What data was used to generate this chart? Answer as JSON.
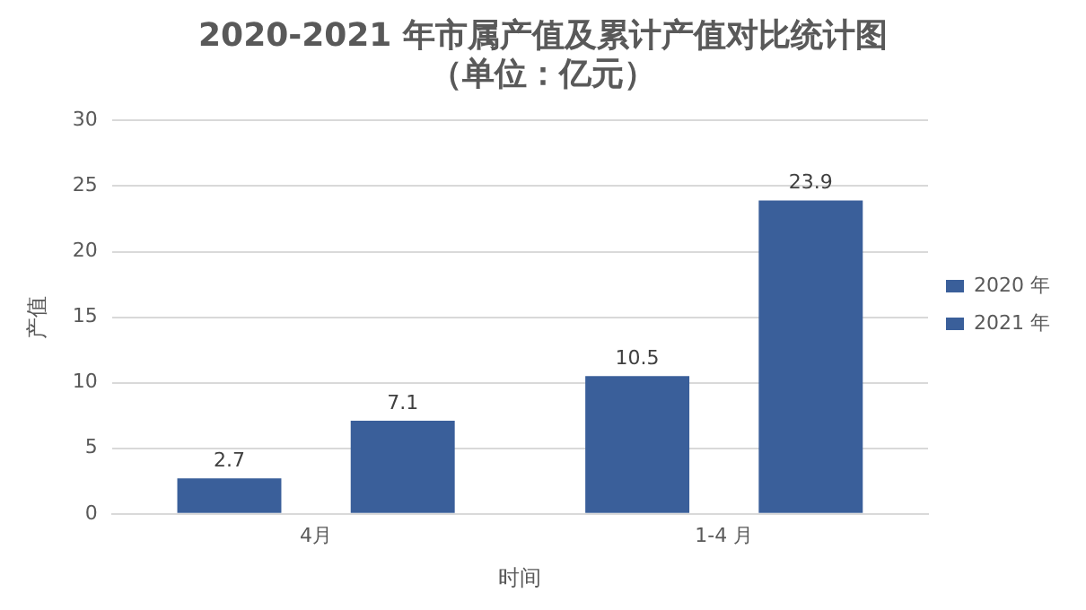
{
  "chart_data": {
    "type": "bar",
    "title": "2020-2021 年市属产值及累计产值对比统计图",
    "subtitle": "（单位：亿元）",
    "xlabel": "时间",
    "ylabel": "产值",
    "categories": [
      "4月",
      "1-4 月"
    ],
    "series": [
      {
        "name": "2020 年",
        "color": "#3a5f9a",
        "values": [
          2.7,
          10.5
        ]
      },
      {
        "name": "2021 年",
        "color": "#3a5f9a",
        "values": [
          7.1,
          23.9
        ]
      }
    ],
    "ylim": [
      0,
      30
    ],
    "yticks": [
      0,
      5,
      10,
      15,
      20,
      25,
      30
    ],
    "grid": "y",
    "legend": "right",
    "data_labels": true
  }
}
